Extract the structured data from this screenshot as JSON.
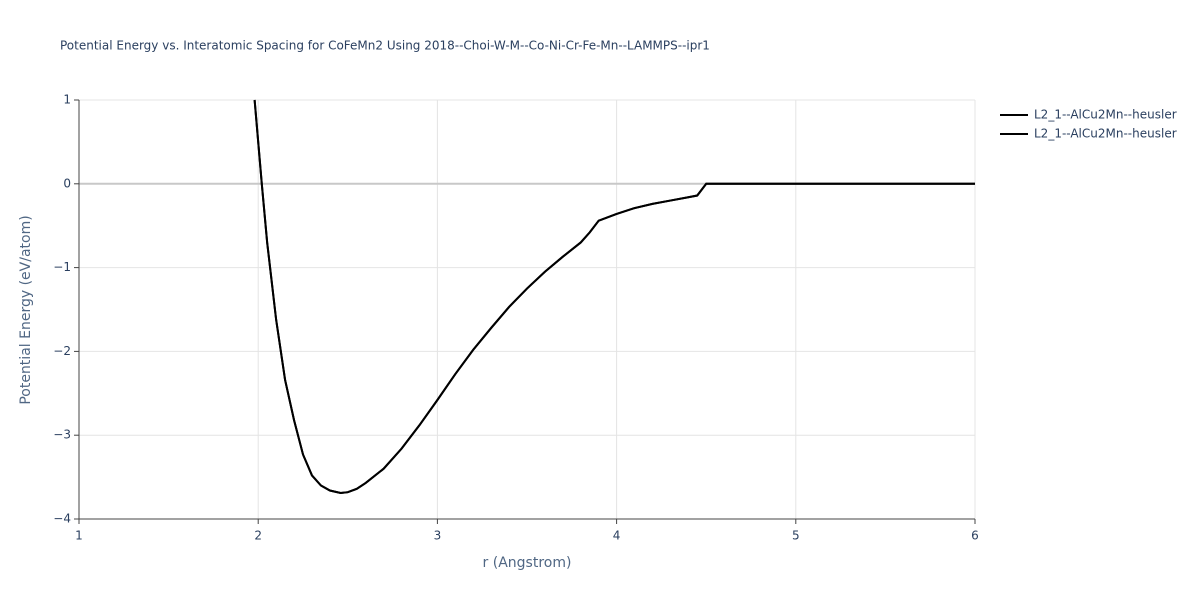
{
  "chart_data": {
    "type": "line",
    "title": "Potential Energy vs. Interatomic Spacing for CoFeMn2 Using 2018--Choi-W-M--Co-Ni-Cr-Fe-Mn--LAMMPS--ipr1",
    "x_label": "r (Angstrom)",
    "y_label": "Potential Energy (eV/atom)",
    "x": [
      1.98,
      2.02,
      2.05,
      2.1,
      2.15,
      2.2,
      2.25,
      2.3,
      2.35,
      2.4,
      2.46,
      2.5,
      2.55,
      2.6,
      2.7,
      2.8,
      2.9,
      3.0,
      3.1,
      3.2,
      3.3,
      3.4,
      3.5,
      3.6,
      3.7,
      3.8,
      3.85,
      3.9,
      4.0,
      4.1,
      4.2,
      4.3,
      4.4,
      4.45,
      4.5,
      5.0,
      5.5,
      6.0
    ],
    "series": [
      {
        "name": "L2_1--AlCu2Mn--heusler",
        "color": "#000000",
        "values": [
          1.0,
          0.0,
          -0.7,
          -1.62,
          -2.34,
          -2.82,
          -3.23,
          -3.48,
          -3.6,
          -3.66,
          -3.69,
          -3.68,
          -3.64,
          -3.57,
          -3.4,
          -3.16,
          -2.88,
          -2.58,
          -2.27,
          -1.98,
          -1.72,
          -1.47,
          -1.25,
          -1.05,
          -0.87,
          -0.7,
          -0.58,
          -0.44,
          -0.36,
          -0.29,
          -0.24,
          -0.2,
          -0.16,
          -0.14,
          0.0,
          0.0,
          0.0,
          0.0
        ]
      },
      {
        "name": "L2_1--AlCu2Mn--heusler",
        "color": "#000000",
        "values": [
          1.0,
          0.0,
          -0.7,
          -1.62,
          -2.34,
          -2.82,
          -3.23,
          -3.48,
          -3.6,
          -3.66,
          -3.69,
          -3.68,
          -3.64,
          -3.57,
          -3.4,
          -3.16,
          -2.88,
          -2.58,
          -2.27,
          -1.98,
          -1.72,
          -1.47,
          -1.25,
          -1.05,
          -0.87,
          -0.7,
          -0.58,
          -0.44,
          -0.36,
          -0.29,
          -0.24,
          -0.2,
          -0.16,
          -0.14,
          0.0,
          0.0,
          0.0,
          0.0
        ]
      }
    ],
    "xlim": [
      1,
      6
    ],
    "xticks": [
      1,
      2,
      3,
      4,
      5,
      6
    ],
    "ylim": [
      -4,
      1
    ],
    "yticks": [
      {
        "value": -4,
        "label": "−4"
      },
      {
        "value": -3,
        "label": "−3"
      },
      {
        "value": -2,
        "label": "−2"
      },
      {
        "value": -1,
        "label": "−1"
      },
      0,
      1
    ],
    "grid": true,
    "legend": "top-right"
  }
}
